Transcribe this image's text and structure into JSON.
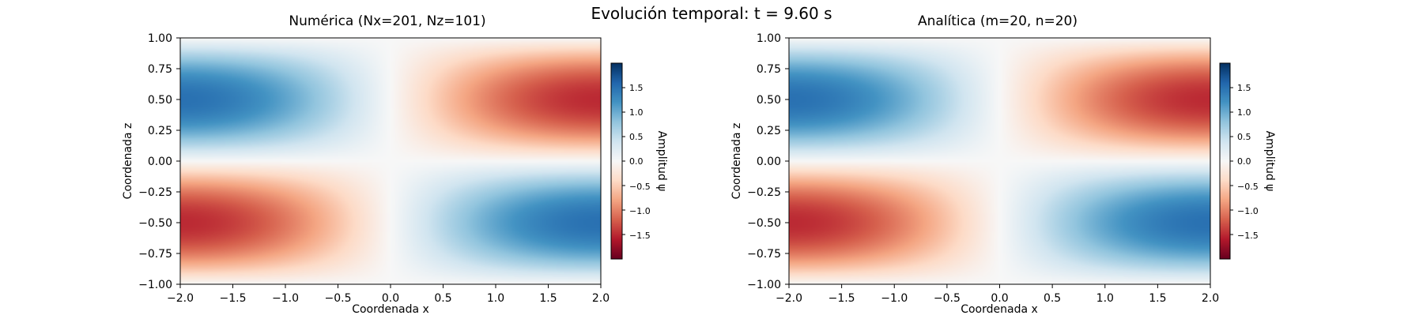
{
  "suptitle": "Evolución temporal: t = 9.60 s",
  "colors": {
    "cmap_low": "#67001f",
    "cmap_mid": "#f7f7f7",
    "cmap_high": "#053061"
  },
  "chart_data": [
    {
      "type": "heatmap",
      "title": "Numérica (Nx=201, Nz=101)",
      "xlabel": "Coordenada x",
      "ylabel": "Coordenada z",
      "xlim": [
        -2.0,
        2.0
      ],
      "ylim": [
        -1.0,
        1.0
      ],
      "xticks": [
        "−2.0",
        "−1.5",
        "−1.0",
        "−0.5",
        "0.0",
        "0.5",
        "1.0",
        "1.5",
        "2.0"
      ],
      "yticks": [
        "−1.00",
        "−0.75",
        "−0.50",
        "−0.25",
        "0.00",
        "0.25",
        "0.50",
        "0.75",
        "1.00"
      ],
      "field": "psi = -A*sin(pi*x/4)*sin(pi*z), A≈1.5",
      "amplitude": 1.5,
      "colorbar": {
        "label": "Amplitud ψ",
        "range": [
          -2.0,
          2.0
        ],
        "ticks": [
          "−1.5",
          "−1.0",
          "−0.5",
          "0.0",
          "0.5",
          "1.0",
          "1.5"
        ]
      }
    },
    {
      "type": "heatmap",
      "title": "Analítica (m=20, n=20)",
      "xlabel": "Coordenada x",
      "ylabel": "Coordenada z",
      "xlim": [
        -2.0,
        2.0
      ],
      "ylim": [
        -1.0,
        1.0
      ],
      "xticks": [
        "−2.0",
        "−1.5",
        "−1.0",
        "−0.5",
        "0.0",
        "0.5",
        "1.0",
        "1.5",
        "2.0"
      ],
      "yticks": [
        "−1.00",
        "−0.75",
        "−0.50",
        "−0.25",
        "0.00",
        "0.25",
        "0.50",
        "0.75",
        "1.00"
      ],
      "field": "psi = -A*sin(pi*x/4)*sin(pi*z), A≈1.5",
      "amplitude": 1.5,
      "colorbar": {
        "label": "Amplitud ψ",
        "range": [
          -2.0,
          2.0
        ],
        "ticks": [
          "−1.5",
          "−1.0",
          "−0.5",
          "0.0",
          "0.5",
          "1.0",
          "1.5"
        ]
      }
    }
  ]
}
